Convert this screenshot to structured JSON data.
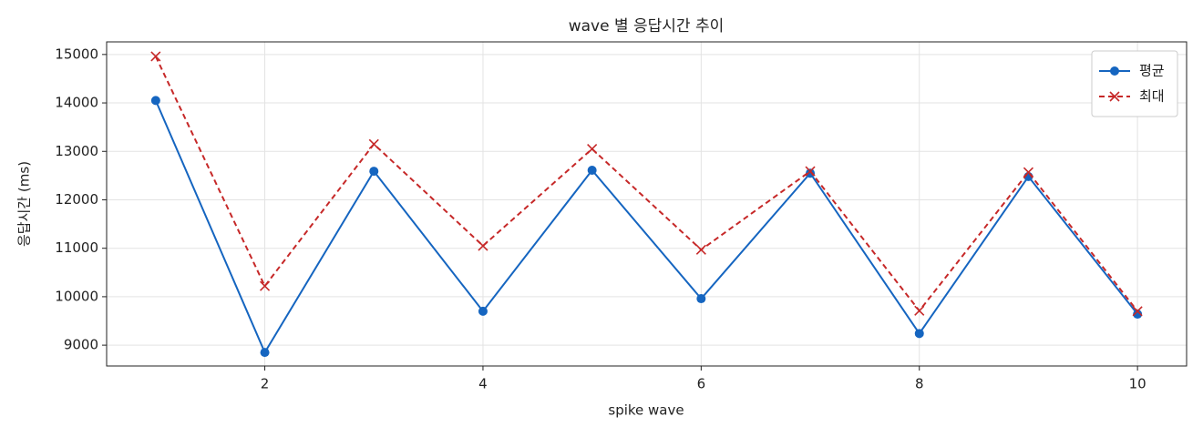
{
  "chart_data": {
    "type": "line",
    "title": "wave 별 응답시간 추이",
    "x_label": "spike wave",
    "y_label": "응답시간 (ms)",
    "x": [
      1,
      2,
      3,
      4,
      5,
      6,
      7,
      8,
      9,
      10
    ],
    "series": [
      {
        "name": "평균",
        "color": "#1565c0",
        "marker": "o",
        "linestyle": "-",
        "values": [
          14050,
          8850,
          12590,
          9700,
          12610,
          9960,
          12550,
          9240,
          12480,
          9640
        ]
      },
      {
        "name": "최대",
        "color": "#c62828",
        "marker": "x",
        "linestyle": "--",
        "values": [
          14960,
          10220,
          13150,
          11050,
          13050,
          10970,
          12590,
          9710,
          12570,
          9700
        ]
      }
    ],
    "xlim": [
      0.55,
      10.45
    ],
    "ylim": [
      8570,
      15260
    ],
    "xticks": [
      2,
      4,
      6,
      8,
      10
    ],
    "yticks": [
      9000,
      10000,
      11000,
      12000,
      13000,
      14000,
      15000
    ],
    "grid": true,
    "legend": "upper right"
  }
}
